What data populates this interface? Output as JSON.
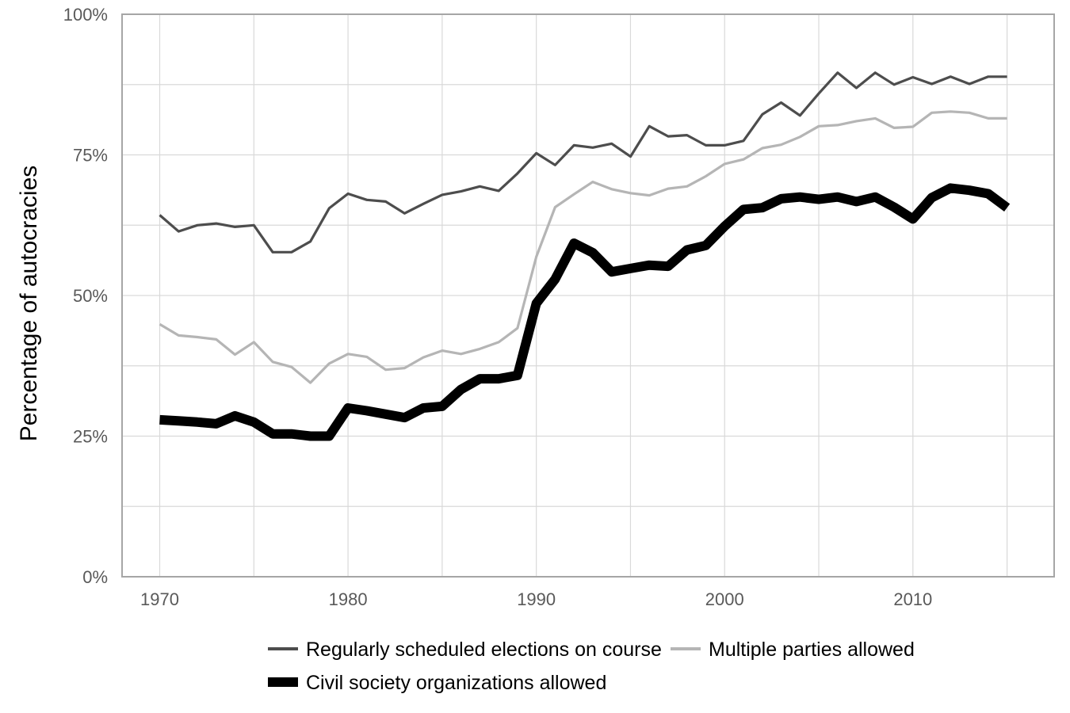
{
  "chart_data": {
    "type": "line",
    "title": "",
    "xlabel": "",
    "ylabel": "Percentage of autocracies",
    "x": [
      1970,
      1971,
      1972,
      1973,
      1974,
      1975,
      1976,
      1977,
      1978,
      1979,
      1980,
      1981,
      1982,
      1983,
      1984,
      1985,
      1986,
      1987,
      1988,
      1989,
      1990,
      1991,
      1992,
      1993,
      1994,
      1995,
      1996,
      1997,
      1998,
      1999,
      2000,
      2001,
      2002,
      2003,
      2004,
      2005,
      2006,
      2007,
      2008,
      2009,
      2010,
      2011,
      2012,
      2013,
      2014,
      2015
    ],
    "xlim": [
      1968,
      2017.5
    ],
    "ylim": [
      0,
      100
    ],
    "xticks": [
      1970,
      1980,
      1990,
      2000,
      2010
    ],
    "xtick_labels": [
      "1970",
      "1980",
      "1990",
      "2000",
      "2010"
    ],
    "yticks": [
      0,
      25,
      50,
      75,
      100
    ],
    "ytick_labels": [
      "0%",
      "25%",
      "50%",
      "75%",
      "100%"
    ],
    "grid": true,
    "legend_position": "bottom",
    "series": [
      {
        "name": "Regularly scheduled elections on course",
        "color": "#4d4d4d",
        "values": [
          64.3,
          61.4,
          62.5,
          62.8,
          62.2,
          62.5,
          57.7,
          57.7,
          59.6,
          65.5,
          68.1,
          67.0,
          66.7,
          64.6,
          66.3,
          67.9,
          68.5,
          69.4,
          68.6,
          71.7,
          75.3,
          73.2,
          76.7,
          76.3,
          77.0,
          74.7,
          80.1,
          78.3,
          78.5,
          76.7,
          76.7,
          77.5,
          82.2,
          84.3,
          82.0,
          85.9,
          89.6,
          86.9,
          89.6,
          87.5,
          88.8,
          87.6,
          88.9,
          87.6,
          88.9,
          88.9
        ]
      },
      {
        "name": "Multiple parties allowed",
        "color": "#b5b5b5",
        "values": [
          44.9,
          42.9,
          42.6,
          42.2,
          39.5,
          41.7,
          38.2,
          37.3,
          34.5,
          37.9,
          39.6,
          39.1,
          36.8,
          37.1,
          39.0,
          40.2,
          39.6,
          40.5,
          41.7,
          44.2,
          56.9,
          65.7,
          68.0,
          70.2,
          68.9,
          68.2,
          67.8,
          69.0,
          69.4,
          71.2,
          73.4,
          74.2,
          76.2,
          76.8,
          78.2,
          80.1,
          80.3,
          81.0,
          81.5,
          79.8,
          80.0,
          82.5,
          82.7,
          82.5,
          81.5,
          81.5
        ]
      },
      {
        "name": "Civil society organizations allowed",
        "color": "#000000",
        "values": [
          27.9,
          27.7,
          27.5,
          27.2,
          28.6,
          27.5,
          25.4,
          25.4,
          25.0,
          25.0,
          30.0,
          29.5,
          28.9,
          28.3,
          30.0,
          30.3,
          33.3,
          35.2,
          35.2,
          35.8,
          48.6,
          52.9,
          59.3,
          57.6,
          54.2,
          54.8,
          55.4,
          55.2,
          58.1,
          58.9,
          62.3,
          65.3,
          65.6,
          67.2,
          67.5,
          67.1,
          67.5,
          66.7,
          67.5,
          65.7,
          63.6,
          67.4,
          69.1,
          68.7,
          68.1,
          65.6
        ]
      }
    ]
  }
}
